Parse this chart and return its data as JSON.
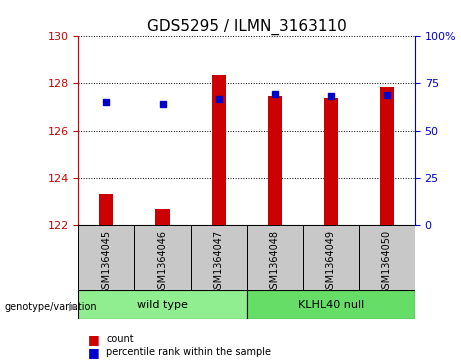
{
  "title": "GDS5295 / ILMN_3163110",
  "categories": [
    "GSM1364045",
    "GSM1364046",
    "GSM1364047",
    "GSM1364048",
    "GSM1364049",
    "GSM1364050"
  ],
  "bar_bottom": 122,
  "red_values": [
    123.3,
    122.7,
    128.35,
    127.45,
    127.4,
    127.85
  ],
  "blue_values": [
    127.2,
    127.15,
    127.35,
    127.55,
    127.45,
    127.5
  ],
  "ylim": [
    122,
    130
  ],
  "yticks": [
    122,
    124,
    126,
    128,
    130
  ],
  "right_yticks_labels": [
    "0",
    "25",
    "50",
    "75",
    "100%"
  ],
  "right_yticks_vals": [
    0,
    25,
    50,
    75,
    100
  ],
  "left_color": "#cc0000",
  "blue_color": "#0000cc",
  "bar_width": 0.25,
  "title_fontsize": 11,
  "cell_bg": "#c8c8c8",
  "wt_color": "#90EE90",
  "kl_color": "#66DD66",
  "legend_red": "#cc0000",
  "legend_blue": "#0000cc"
}
